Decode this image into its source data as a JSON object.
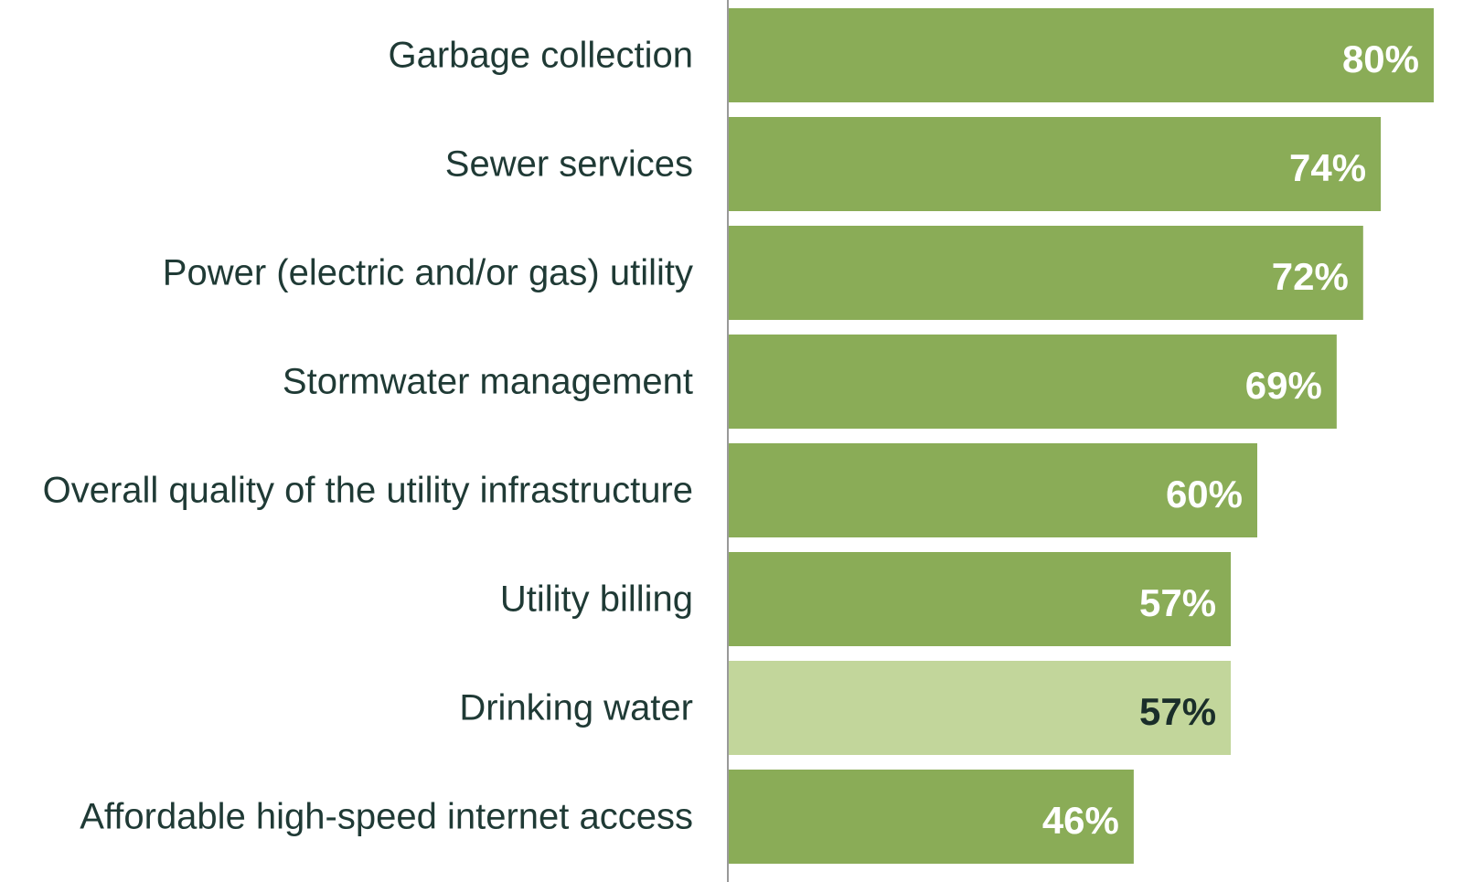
{
  "chart_data": {
    "type": "bar",
    "orientation": "horizontal",
    "categories": [
      "Garbage collection",
      "Sewer services",
      "Power (electric and/or gas) utility",
      "Stormwater management",
      "Overall quality of the utility infrastructure",
      "Utility billing",
      "Drinking water",
      "Affordable high-speed internet access"
    ],
    "values": [
      80,
      74,
      72,
      69,
      60,
      57,
      57,
      46
    ],
    "value_labels": [
      "80%",
      "74%",
      "72%",
      "69%",
      "60%",
      "57%",
      "57%",
      "46%"
    ],
    "highlighted_category": "Drinking water",
    "xlim": [
      0,
      80
    ],
    "grid": false,
    "legend": "none"
  },
  "colors": {
    "bar": "#8aac57",
    "bar_highlight": "#c2d69b",
    "label_on_bar": "#ffffff",
    "label_on_highlight": "#1a2e2a",
    "category_text": "#1f3a35",
    "axis": "#999999"
  }
}
